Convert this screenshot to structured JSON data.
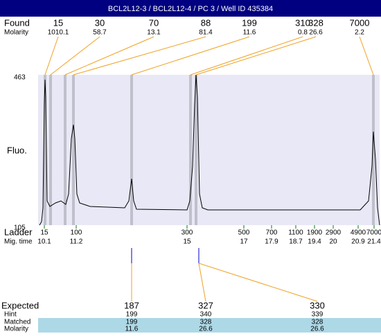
{
  "header": {
    "title": "BCL2L12-3 / BCL2L12-4 / PC 3 / Well ID 435384"
  },
  "found": {
    "label": "Found",
    "sub_label": "Molarity",
    "peaks": [
      {
        "size": "15",
        "molarity": "1010.1"
      },
      {
        "size": "30",
        "molarity": "58.7"
      },
      {
        "size": "70",
        "molarity": "13.1"
      },
      {
        "size": "88",
        "molarity": "81.4"
      },
      {
        "size": "199",
        "molarity": "11.6"
      },
      {
        "size": "310",
        "molarity": "0.8"
      },
      {
        "size": "328",
        "molarity": "26.6"
      },
      {
        "size": "7000",
        "molarity": "2.2"
      }
    ]
  },
  "plot": {
    "y_label": "Fluo.",
    "y_top": "463",
    "y_bottom": "105"
  },
  "ladder": {
    "label": "Ladder",
    "sub_label": "Mig. time",
    "bands": [
      {
        "size": "15",
        "time": "10.1"
      },
      {
        "size": "100",
        "time": "11.2"
      },
      {
        "size": "300",
        "time": "15"
      },
      {
        "size": "500",
        "time": "17"
      },
      {
        "size": "700",
        "time": "17.9"
      },
      {
        "size": "1100",
        "time": "18.7"
      },
      {
        "size": "1900",
        "time": "19.4"
      },
      {
        "size": "2900",
        "time": "20"
      },
      {
        "size": "4900",
        "time": "20.9"
      },
      {
        "size": "7000",
        "time": "21.4"
      }
    ]
  },
  "expected": {
    "row_labels": [
      "Expected",
      "Hint",
      "Matched",
      "Molarity"
    ],
    "columns": [
      {
        "expected": "187",
        "hint": "199",
        "matched": "199",
        "molarity": "11.6"
      },
      {
        "expected": "327",
        "hint": "340",
        "matched": "328",
        "molarity": "26.6"
      },
      {
        "expected": "330",
        "hint": "339",
        "matched": "328",
        "molarity": "26.6"
      }
    ]
  }
}
